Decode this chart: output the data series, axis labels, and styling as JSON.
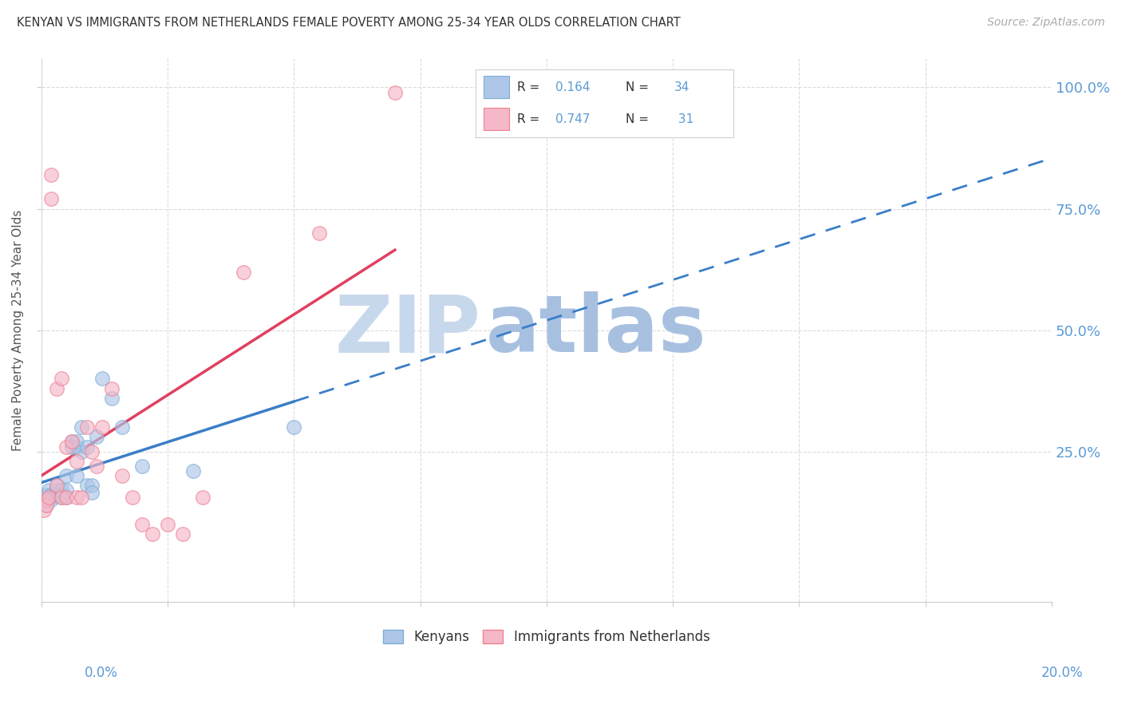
{
  "title": "KENYAN VS IMMIGRANTS FROM NETHERLANDS FEMALE POVERTY AMONG 25-34 YEAR OLDS CORRELATION CHART",
  "source": "Source: ZipAtlas.com",
  "ylabel": "Female Poverty Among 25-34 Year Olds",
  "right_ytick_vals": [
    1.0,
    0.75,
    0.5,
    0.25
  ],
  "right_ytick_labels": [
    "100.0%",
    "75.0%",
    "50.0%",
    "25.0%"
  ],
  "kenyan_x": [
    0.0005,
    0.001,
    0.001,
    0.0015,
    0.002,
    0.002,
    0.002,
    0.003,
    0.003,
    0.003,
    0.004,
    0.004,
    0.004,
    0.005,
    0.005,
    0.005,
    0.006,
    0.006,
    0.007,
    0.007,
    0.007,
    0.008,
    0.008,
    0.009,
    0.009,
    0.01,
    0.01,
    0.011,
    0.012,
    0.014,
    0.016,
    0.02,
    0.03,
    0.05
  ],
  "kenyan_y": [
    0.155,
    0.14,
    0.16,
    0.17,
    0.155,
    0.16,
    0.15,
    0.16,
    0.17,
    0.18,
    0.155,
    0.17,
    0.16,
    0.2,
    0.155,
    0.17,
    0.27,
    0.26,
    0.26,
    0.2,
    0.27,
    0.25,
    0.3,
    0.26,
    0.18,
    0.18,
    0.165,
    0.28,
    0.4,
    0.36,
    0.3,
    0.22,
    0.21,
    0.3
  ],
  "netherlands_x": [
    0.0005,
    0.001,
    0.001,
    0.0015,
    0.002,
    0.002,
    0.003,
    0.003,
    0.004,
    0.004,
    0.005,
    0.005,
    0.006,
    0.007,
    0.007,
    0.008,
    0.009,
    0.01,
    0.011,
    0.012,
    0.014,
    0.016,
    0.018,
    0.02,
    0.022,
    0.025,
    0.028,
    0.032,
    0.04,
    0.055,
    0.07
  ],
  "netherlands_y": [
    0.13,
    0.15,
    0.14,
    0.155,
    0.77,
    0.82,
    0.38,
    0.18,
    0.4,
    0.155,
    0.26,
    0.155,
    0.27,
    0.23,
    0.155,
    0.155,
    0.3,
    0.25,
    0.22,
    0.3,
    0.38,
    0.2,
    0.155,
    0.1,
    0.08,
    0.1,
    0.08,
    0.155,
    0.62,
    0.7,
    0.99
  ],
  "kenyan_marker_face": "#aec6e8",
  "kenyan_marker_edge": "#7bafd4",
  "netherlands_marker_face": "#f4b8c8",
  "netherlands_marker_edge": "#f08090",
  "trend_kenyan_color": "#3a7ec8",
  "trend_netherlands_color": "#e04060",
  "axis_color": "#5b9bd5",
  "title_color": "#333333",
  "source_color": "#aaaaaa",
  "watermark_zip": "#c8d8ec",
  "watermark_atlas": "#a8c0e0",
  "grid_color": "#d8d8d8",
  "background_color": "#ffffff",
  "xlim": [
    0.0,
    0.2
  ],
  "ylim": [
    0.0,
    1.05
  ],
  "legend_R_k": "0.164",
  "legend_N_k": "34",
  "legend_R_n": "0.747",
  "legend_N_n": "31",
  "bottom_legend_k": "Kenyans",
  "bottom_legend_n": "Immigrants from Netherlands"
}
